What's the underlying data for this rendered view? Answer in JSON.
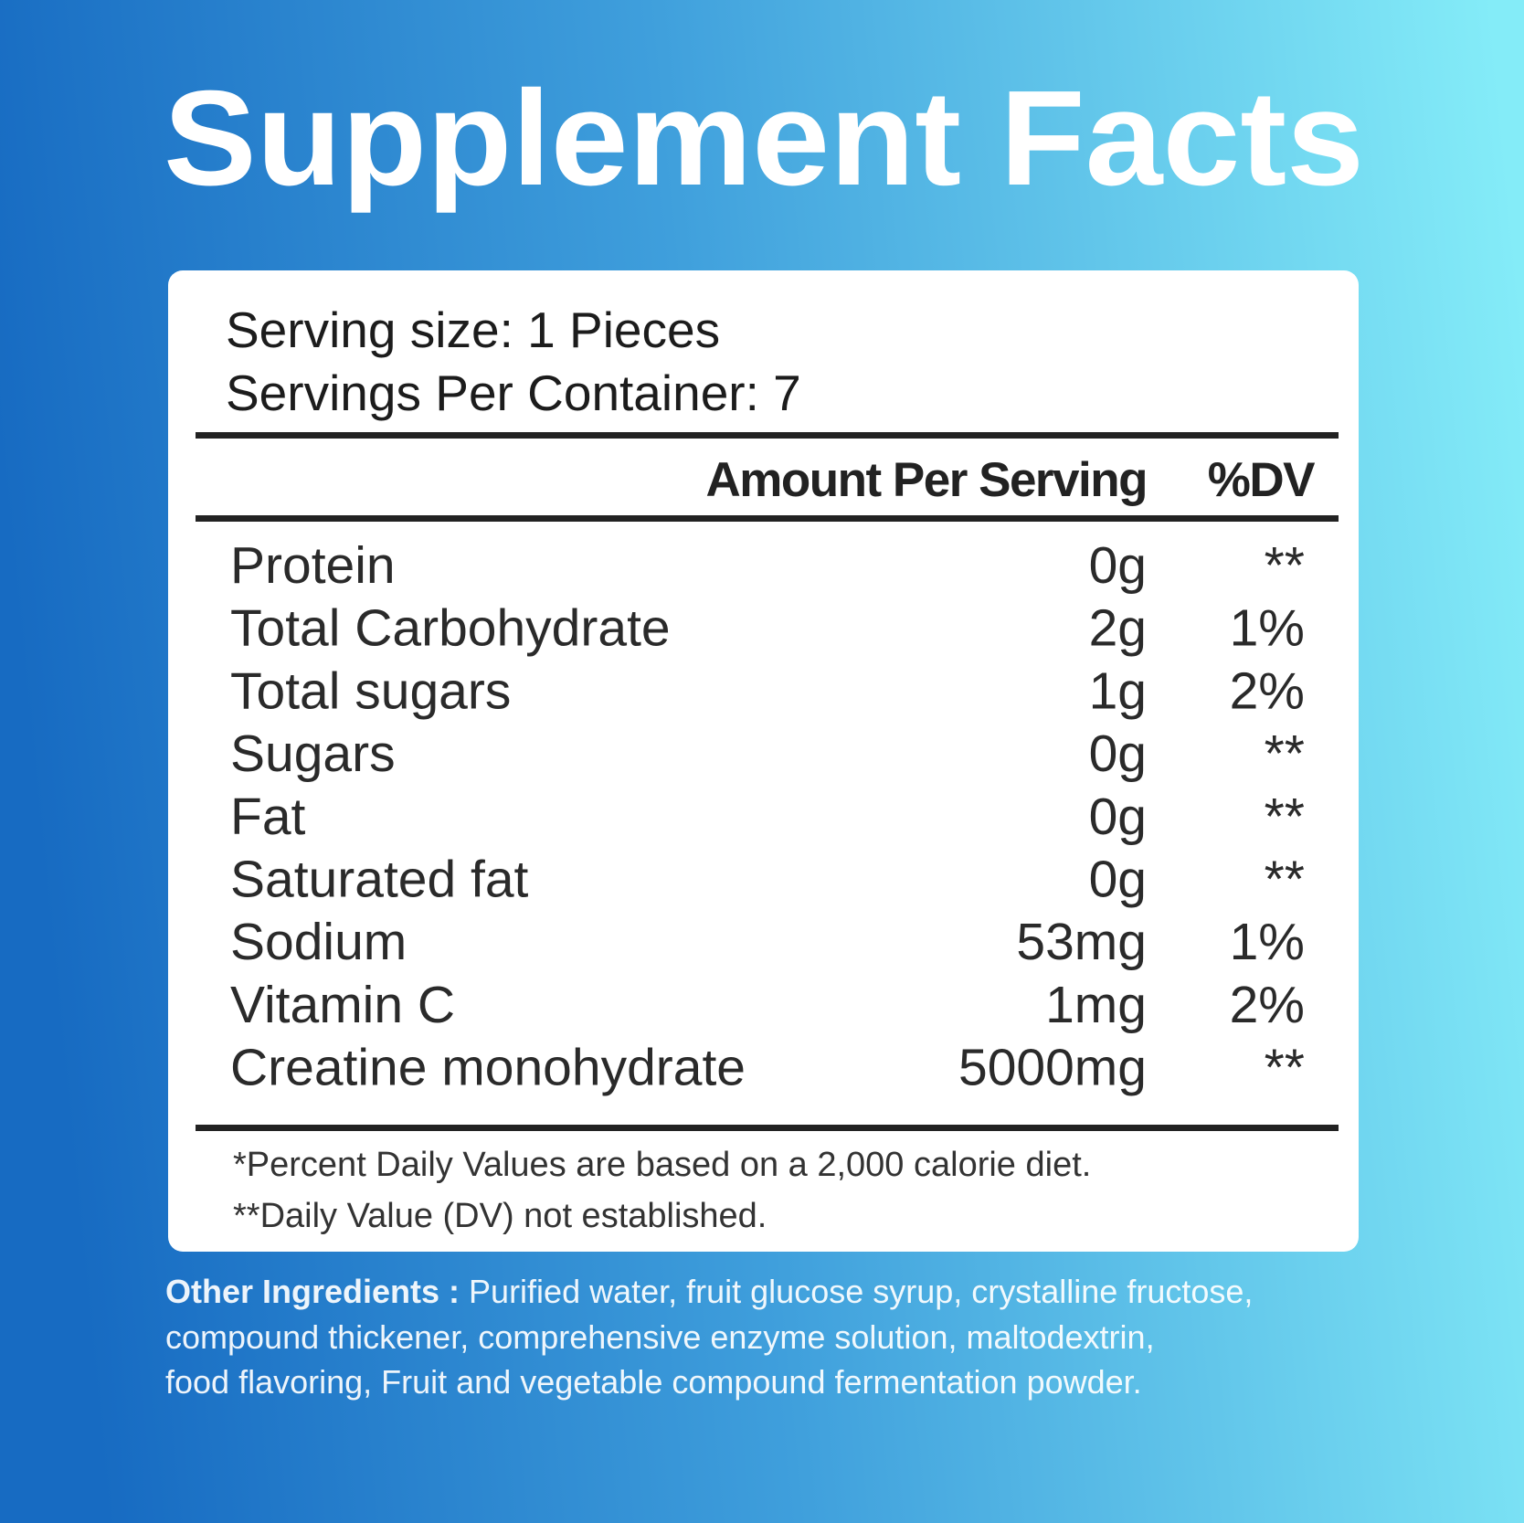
{
  "header": {
    "title": "Supplement Facts"
  },
  "serving": {
    "size": "Serving size: 1 Pieces",
    "per_container": "Servings Per Container: 7"
  },
  "table": {
    "columns": [
      "Amount Per Serving",
      "%DV"
    ],
    "rows": [
      [
        "Protein",
        "0g",
        "**"
      ],
      [
        "Total Carbohydrate",
        "2g",
        "1%"
      ],
      [
        "Total sugars",
        "1g",
        "2%"
      ],
      [
        "Sugars",
        "0g",
        "**"
      ],
      [
        "Fat",
        "0g",
        "**"
      ],
      [
        "Saturated fat",
        "0g",
        "**"
      ],
      [
        "Sodium",
        "53mg",
        "1%"
      ],
      [
        "Vitamin C",
        "1mg",
        "2%"
      ],
      [
        "Creatine monohydrate",
        "5000mg",
        "**"
      ]
    ]
  },
  "footnotes": [
    "*Percent Daily Values are based on a 2,000 calorie diet.",
    "**Daily Value (DV) not established."
  ],
  "other_ingredients": {
    "label": "Other Ingredients :",
    "lines": [
      "Purified water, fruit glucose syrup, crystalline fructose,",
      "compound thickener, comprehensive enzyme solution, maltodextrin,",
      "food flavoring, Fruit and vegetable compound fermentation powder."
    ]
  }
}
